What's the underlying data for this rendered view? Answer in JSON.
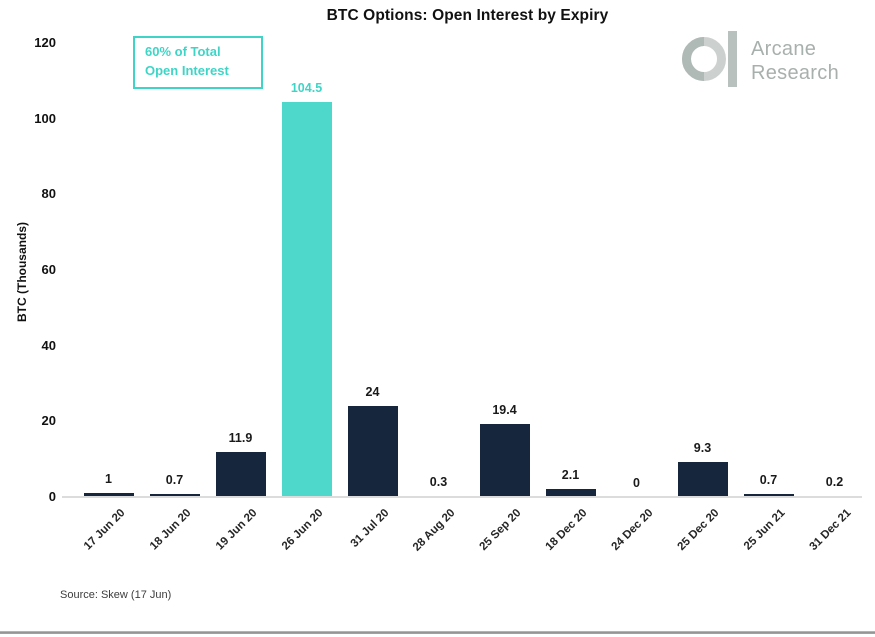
{
  "title": "BTC Options: Open Interest by Expiry",
  "annotation": {
    "line1": "60% of Total",
    "line2": "Open Interest"
  },
  "logo": {
    "name": "Arcane Research",
    "line1": "Arcane",
    "line2": "Research"
  },
  "source": "Source: Skew (17 Jun)",
  "colors": {
    "bar": "#15263d",
    "highlight": "#4dd8cb",
    "accent_text": "#3ed5c7",
    "logo_gray_dark": "#afb9b6",
    "logo_gray_light": "#ccd1cf",
    "logo_bar": "#b9c1bf",
    "axis_line": "#dcdcdc"
  },
  "chart_data": {
    "type": "bar",
    "title": "BTC Options: Open Interest by Expiry",
    "categories": [
      "17 Jun 20",
      "18 Jun 20",
      "19 Jun 20",
      "26 Jun 20",
      "31 Jul 20",
      "28 Aug 20",
      "25 Sep 20",
      "18 Dec 20",
      "24 Dec 20",
      "25 Dec 20",
      "25 Jun 21",
      "31 Dec 21"
    ],
    "values": [
      1,
      0.7,
      11.9,
      104.5,
      24,
      0.3,
      19.4,
      2.1,
      0,
      9.3,
      0.7,
      0.2
    ],
    "value_labels": [
      "1",
      "0.7",
      "11.9",
      "104.5",
      "24",
      "0.3",
      "19.4",
      "2.1",
      "0",
      "9.3",
      "0.7",
      "0.2"
    ],
    "highlight_index": 3,
    "highlight_annotation": "60% of Total Open Interest",
    "xlabel": "",
    "ylabel": "BTC  (Thousands)",
    "ylim": [
      0,
      120
    ],
    "yticks": [
      0,
      20,
      40,
      60,
      80,
      100,
      120
    ],
    "grid": false,
    "legend": false,
    "source": "Source: Skew (17 Jun)"
  }
}
